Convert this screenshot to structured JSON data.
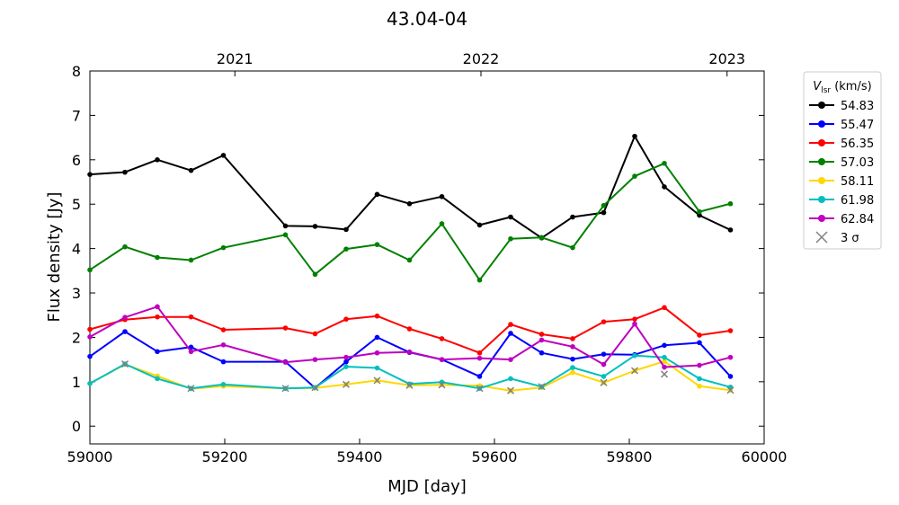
{
  "chart_data": {
    "type": "line",
    "title": "43.04-04",
    "xlabel": "MJD [day]",
    "ylabel": "Flux density [Jy]",
    "xlim": [
      59000,
      60000
    ],
    "ylim": [
      -0.4,
      8
    ],
    "xticks": [
      59000,
      59200,
      59400,
      59600,
      59800,
      60000
    ],
    "yticks": [
      0,
      1,
      2,
      3,
      4,
      5,
      6,
      7,
      8
    ],
    "top_axis": {
      "labels": [
        {
          "label": "2021",
          "mjd": 59215
        },
        {
          "label": "2022",
          "mjd": 59580
        },
        {
          "label": "2023",
          "mjd": 59945
        }
      ]
    },
    "legend": {
      "title_main": "V",
      "title_sub": "lsr",
      "title_unit": " (km/s)",
      "placement": "outside-right"
    },
    "x": [
      59000,
      59052,
      59100,
      59150,
      59198,
      59290,
      59334,
      59380,
      59426,
      59474,
      59522,
      59578,
      59624,
      59670,
      59716,
      59762,
      59808,
      59852,
      59904,
      59950
    ],
    "series": [
      {
        "name": "54.83",
        "color": "#000000",
        "y": [
          5.67,
          5.72,
          6.0,
          5.76,
          6.1,
          4.51,
          4.5,
          4.43,
          5.22,
          5.01,
          5.17,
          4.53,
          4.71,
          4.24,
          4.71,
          4.81,
          6.53,
          5.39,
          4.75,
          4.42
        ]
      },
      {
        "name": "55.47",
        "color": "#0000ff",
        "y": [
          1.57,
          2.13,
          1.68,
          1.78,
          1.45,
          1.45,
          0.86,
          1.45,
          2.0,
          1.66,
          1.5,
          1.12,
          2.09,
          1.65,
          1.51,
          1.62,
          1.61,
          1.82,
          1.88,
          1.12
        ]
      },
      {
        "name": "56.35",
        "color": "#ff0000",
        "y": [
          2.18,
          2.4,
          2.46,
          2.46,
          2.17,
          2.21,
          2.08,
          2.41,
          2.48,
          2.19,
          1.97,
          1.65,
          2.29,
          2.07,
          1.97,
          2.35,
          2.41,
          2.67,
          2.05,
          2.15
        ]
      },
      {
        "name": "57.03",
        "color": "#008000",
        "y": [
          3.52,
          4.04,
          3.8,
          3.74,
          4.02,
          4.31,
          3.42,
          3.99,
          4.09,
          3.74,
          4.56,
          3.29,
          4.22,
          4.25,
          4.02,
          4.97,
          5.63,
          5.92,
          4.83,
          5.01
        ]
      },
      {
        "name": "58.11",
        "color": "#ffd700",
        "y": [
          0.96,
          1.39,
          1.13,
          0.84,
          0.9,
          0.85,
          0.86,
          0.94,
          1.03,
          0.92,
          0.93,
          0.91,
          0.8,
          0.87,
          1.21,
          0.98,
          1.25,
          1.46,
          0.9,
          0.81
        ]
      },
      {
        "name": "61.98",
        "color": "#00bfbf",
        "y": [
          0.96,
          1.4,
          1.07,
          0.85,
          0.94,
          0.85,
          0.87,
          1.34,
          1.31,
          0.95,
          0.99,
          0.85,
          1.07,
          0.89,
          1.32,
          1.12,
          1.59,
          1.55,
          1.07,
          0.88
        ]
      },
      {
        "name": "62.84",
        "color": "#bf00bf",
        "y": [
          2.01,
          2.45,
          2.69,
          1.68,
          1.83,
          1.44,
          1.5,
          1.55,
          1.65,
          1.67,
          1.5,
          1.53,
          1.5,
          1.94,
          1.79,
          1.39,
          2.3,
          1.33,
          1.37,
          1.55
        ]
      }
    ],
    "upper_limits": {
      "name": "3 σ",
      "color": "#808080",
      "points": [
        [
          59052,
          1.4
        ],
        [
          59150,
          0.85
        ],
        [
          59290,
          0.85
        ],
        [
          59334,
          0.87
        ],
        [
          59380,
          0.94
        ],
        [
          59426,
          1.03
        ],
        [
          59474,
          0.92
        ],
        [
          59522,
          0.93
        ],
        [
          59578,
          0.85
        ],
        [
          59624,
          0.8
        ],
        [
          59670,
          0.89
        ],
        [
          59762,
          0.98
        ],
        [
          59808,
          1.25
        ],
        [
          59852,
          1.17
        ],
        [
          59950,
          0.81
        ]
      ]
    }
  }
}
